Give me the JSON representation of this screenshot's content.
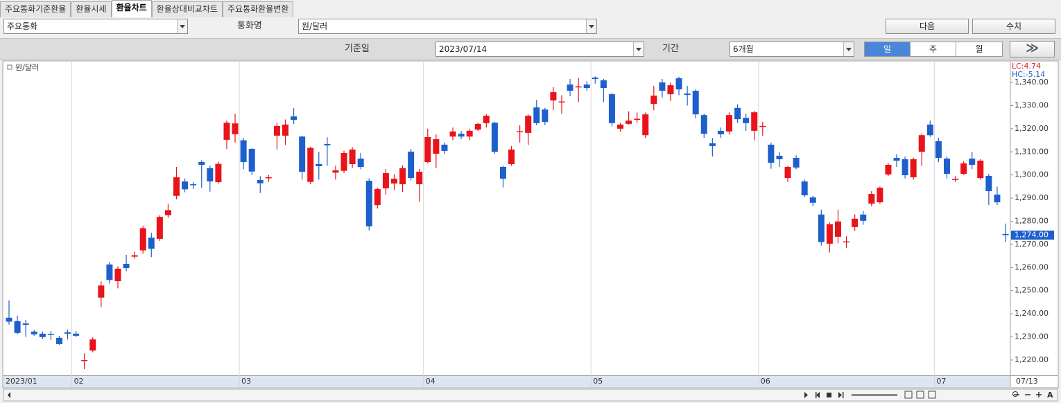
{
  "tabs": [
    "주요통화기준환율",
    "환율시세",
    "환율차트",
    "환율상대비교차트",
    "주요통화환율변환"
  ],
  "currency_group": "주요통화",
  "currency_name_label": "통화명",
  "currency_name": "원/달러",
  "next_button": "다음",
  "values_button": "수치",
  "base_date_label": "기준일",
  "base_date": "2023/07/14",
  "period_label": "기간",
  "period": "6개월",
  "interval_buttons": [
    "일",
    "주",
    "월"
  ],
  "forward_button": "≫",
  "chart_data": {
    "type": "candlestick",
    "series_name": "원/달러",
    "up_color": "#e8141a",
    "down_color": "#1d5fcc",
    "grid": true,
    "lc_label": "LC:4.74",
    "hc_label": "HC:-5.14",
    "last_label": "1,274.00",
    "ylim": [
      1213.4,
      1349.0
    ],
    "yticks": [
      {
        "value": 1220,
        "label": "1,220.00"
      },
      {
        "value": 1230,
        "label": "1,230.00"
      },
      {
        "value": 1240,
        "label": "1,240.00"
      },
      {
        "value": 1250,
        "label": "1,250.00"
      },
      {
        "value": 1260,
        "label": "1,260.00"
      },
      {
        "value": 1270,
        "label": "1,270.00"
      },
      {
        "value": 1280,
        "label": "1,280.00"
      },
      {
        "value": 1290,
        "label": "1,290.00"
      },
      {
        "value": 1300,
        "label": "1,300.00"
      },
      {
        "value": 1310,
        "label": "1,310.00"
      },
      {
        "value": 1320,
        "label": "1,320.00"
      },
      {
        "value": 1330,
        "label": "1,330.00"
      },
      {
        "value": 1340,
        "label": "1,340.00"
      }
    ],
    "categories": [
      "2023/01",
      null,
      null,
      null,
      null,
      null,
      null,
      null,
      "02",
      null,
      null,
      null,
      null,
      null,
      null,
      null,
      null,
      null,
      null,
      null,
      null,
      null,
      null,
      null,
      null,
      null,
      null,
      null,
      "03",
      null,
      null,
      null,
      null,
      null,
      null,
      null,
      null,
      null,
      null,
      null,
      null,
      null,
      null,
      null,
      null,
      null,
      null,
      null,
      null,
      null,
      "04",
      null,
      null,
      null,
      null,
      null,
      null,
      null,
      null,
      null,
      null,
      null,
      null,
      null,
      null,
      null,
      null,
      null,
      null,
      null,
      "05",
      null,
      null,
      null,
      null,
      null,
      null,
      null,
      null,
      null,
      null,
      null,
      null,
      null,
      null,
      null,
      null,
      null,
      null,
      null,
      "06",
      null,
      null,
      null,
      null,
      null,
      null,
      null,
      null,
      null,
      null,
      null,
      null,
      null,
      null,
      null,
      null,
      null,
      null,
      null,
      null,
      "07",
      null,
      null,
      null,
      null,
      null,
      null,
      null,
      "07/13"
    ],
    "open": [
      1238.3,
      1236.8,
      1235.8,
      1232.3,
      1231.4,
      1231.3,
      1229.6,
      1232.0,
      1231.4,
      1219.7,
      1224.1,
      1247.0,
      1261.3,
      1254.1,
      1261.6,
      1264.7,
      1267.4,
      1272.9,
      1272.4,
      1282.6,
      1291.0,
      1297.2,
      1296.0,
      1305.6,
      1302.9,
      1296.9,
      1315.2,
      1317.6,
      1315.0,
      1311.3,
      1297.8,
      1298.7,
      1317.0,
      1317.0,
      1325.3,
      1316.6,
      1297.0,
      1304.7,
      1313.4,
      1301.0,
      1301.8,
      1304.7,
      1307.1,
      1297.5,
      1287.0,
      1294.2,
      1296.3,
      1296.0,
      1310.1,
      1296.0,
      1305.6,
      1309.2,
      1313.1,
      1316.6,
      1317.8,
      1316.6,
      1319.6,
      1322.4,
      1322.6,
      1303.5,
      1304.7,
      1318.6,
      1318.2,
      1329.2,
      1328.3,
      1332.2,
      1331.5,
      1339.1,
      1338.0,
      1339.1,
      1342.1,
      1340.9,
      1334.9,
      1320.0,
      1322.1,
      1324.0,
      1317.2,
      1330.7,
      1340.0,
      1334.9,
      1341.8,
      1335.2,
      1336.4,
      1325.9,
      1313.7,
      1319.1,
      1318.8,
      1329.0,
      1324.7,
      1319.1,
      1321.0,
      1313.1,
      1308.3,
      1298.7,
      1307.4,
      1297.2,
      1290.3,
      1282.9,
      1270.3,
      1273.3,
      1271.0,
      1277.5,
      1282.9,
      1287.6,
      1288.2,
      1300.2,
      1307.4,
      1306.8,
      1299.0,
      1310.0,
      1321.8,
      1314.6,
      1307.1,
      1298.0,
      1300.5,
      1307.1,
      1298.7,
      1299.6,
      1291.5,
      1274.5
    ],
    "high": [
      1245.8,
      1239.2,
      1237.4,
      1233.0,
      1232.3,
      1232.6,
      1230.5,
      1233.2,
      1232.6,
      1222.9,
      1229.9,
      1254.0,
      1262.3,
      1260.5,
      1265.5,
      1266.8,
      1278.0,
      1275.0,
      1282.5,
      1287.5,
      1303.5,
      1298.5,
      1297.0,
      1306.4,
      1304.0,
      1305.8,
      1323.5,
      1326.5,
      1316.0,
      1311.5,
      1299.5,
      1300.0,
      1322.6,
      1324.0,
      1328.9,
      1317.0,
      1312.2,
      1310.0,
      1316.3,
      1304.0,
      1310.5,
      1312.0,
      1309.5,
      1298.5,
      1294.5,
      1302.5,
      1300.3,
      1304.2,
      1311.2,
      1302.6,
      1320.0,
      1317.5,
      1314.0,
      1320.5,
      1319.0,
      1320.0,
      1322.6,
      1326.2,
      1323.0,
      1304.0,
      1312.5,
      1321.5,
      1326.2,
      1332.5,
      1329.0,
      1338.0,
      1334.5,
      1341.5,
      1342.0,
      1340.5,
      1342.6,
      1341.5,
      1335.5,
      1322.5,
      1327.5,
      1327.0,
      1327.0,
      1338.5,
      1341.5,
      1340.0,
      1342.5,
      1338.5,
      1337.0,
      1326.5,
      1316.0,
      1320.5,
      1327.0,
      1330.5,
      1326.5,
      1327.7,
      1323.0,
      1314.0,
      1310.0,
      1304.0,
      1308.5,
      1298.0,
      1291.0,
      1285.0,
      1279.5,
      1285.0,
      1273.5,
      1283.0,
      1284.5,
      1293.0,
      1295.0,
      1305.0,
      1309.0,
      1308.0,
      1307.5,
      1318.0,
      1323.5,
      1316.0,
      1308.0,
      1299.5,
      1306.0,
      1310.0,
      1306.8,
      1300.5,
      1295.0,
      1279.0
    ],
    "low": [
      1235.3,
      1231.1,
      1230.0,
      1230.5,
      1229.0,
      1228.7,
      1226.6,
      1228.9,
      1229.9,
      1216.1,
      1223.3,
      1242.9,
      1253.0,
      1251.0,
      1258.4,
      1263.8,
      1266.0,
      1264.5,
      1271.5,
      1281.5,
      1289.5,
      1292.5,
      1294.0,
      1294.5,
      1292.8,
      1296.3,
      1311.2,
      1314.0,
      1302.5,
      1300.0,
      1292.2,
      1297.0,
      1311.0,
      1313.0,
      1322.0,
      1298.0,
      1296.0,
      1298.0,
      1304.0,
      1298.0,
      1300.8,
      1303.0,
      1302.5,
      1276.0,
      1285.5,
      1291.5,
      1293.5,
      1292.7,
      1297.6,
      1288.5,
      1305.0,
      1303.0,
      1309.0,
      1315.0,
      1315.5,
      1315.0,
      1319.0,
      1320.5,
      1309.2,
      1294.6,
      1304.0,
      1314.0,
      1313.0,
      1321.5,
      1321.5,
      1328.0,
      1326.5,
      1334.0,
      1331.5,
      1336.5,
      1339.5,
      1331.5,
      1321.0,
      1318.7,
      1321.8,
      1322.5,
      1316.0,
      1328.0,
      1333.5,
      1332.0,
      1334.5,
      1330.0,
      1324.5,
      1316.0,
      1308.0,
      1316.0,
      1317.5,
      1322.5,
      1319.0,
      1315.0,
      1317.0,
      1302.7,
      1303.5,
      1297.0,
      1302.5,
      1290.5,
      1286.5,
      1269.5,
      1266.5,
      1270.5,
      1268.5,
      1275.8,
      1278.5,
      1286.5,
      1287.5,
      1299.5,
      1303.5,
      1298.5,
      1298.0,
      1304.0,
      1316.5,
      1305.5,
      1298.5,
      1297.0,
      1300.0,
      1302.5,
      1298.0,
      1287.0,
      1287.0,
      1271.0
    ],
    "close": [
      1236.6,
      1231.7,
      1235.2,
      1231.1,
      1229.9,
      1231.0,
      1226.9,
      1231.4,
      1230.5,
      1220.0,
      1228.9,
      1252.2,
      1254.6,
      1259.5,
      1259.8,
      1265.3,
      1277.0,
      1268.1,
      1281.9,
      1284.8,
      1299.0,
      1293.8,
      1295.6,
      1304.4,
      1297.2,
      1304.8,
      1322.6,
      1322.3,
      1305.6,
      1301.5,
      1296.4,
      1299.0,
      1321.2,
      1321.8,
      1323.8,
      1301.4,
      1311.7,
      1303.8,
      1312.8,
      1302.0,
      1309.5,
      1311.0,
      1303.5,
      1277.8,
      1293.9,
      1300.8,
      1298.4,
      1302.9,
      1298.7,
      1301.4,
      1316.4,
      1315.5,
      1310.4,
      1318.8,
      1316.6,
      1319.1,
      1322.1,
      1325.6,
      1310.0,
      1298.4,
      1311.0,
      1318.9,
      1325.6,
      1322.4,
      1322.9,
      1335.8,
      1331.8,
      1336.4,
      1338.3,
      1337.6,
      1341.5,
      1337.6,
      1322.4,
      1321.8,
      1323.5,
      1324.3,
      1326.2,
      1334.3,
      1336.4,
      1338.8,
      1337.0,
      1334.6,
      1326.2,
      1317.8,
      1312.5,
      1317.6,
      1325.9,
      1324.1,
      1322.4,
      1327.1,
      1321.2,
      1305.3,
      1306.8,
      1303.5,
      1303.2,
      1291.2,
      1288.0,
      1271.0,
      1278.7,
      1279.9,
      1271.3,
      1281.1,
      1280.2,
      1291.8,
      1294.5,
      1304.4,
      1306.2,
      1299.9,
      1306.8,
      1317.2,
      1317.2,
      1307.4,
      1300.5,
      1298.3,
      1305.0,
      1304.4,
      1306.2,
      1293.0,
      1288.2,
      1274.0
    ]
  }
}
